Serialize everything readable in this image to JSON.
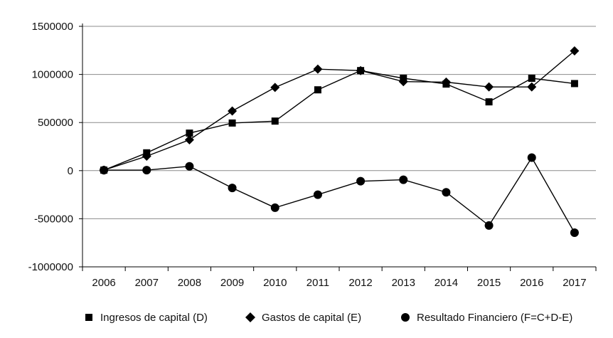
{
  "chart_data": {
    "type": "line",
    "title": "",
    "xlabel": "",
    "ylabel": "",
    "categories": [
      "2006",
      "2007",
      "2008",
      "2009",
      "2010",
      "2011",
      "2012",
      "2013",
      "2014",
      "2015",
      "2016",
      "2017"
    ],
    "ylim": [
      -1000000,
      1500000
    ],
    "yticks": [
      1500000,
      1000000,
      500000,
      0,
      -500000,
      -1000000
    ],
    "ytick_labels": [
      "1500000",
      "1000000",
      "500000",
      "0",
      "-500000",
      "-1000000"
    ],
    "grid": "horizontal",
    "legend_position": "bottom",
    "series": [
      {
        "name": "Ingresos de capital (D)",
        "marker": "square",
        "values": [
          5000,
          185000,
          390000,
          495000,
          515000,
          840000,
          1040000,
          960000,
          900000,
          715000,
          960000,
          905000
        ]
      },
      {
        "name": "Gastos de capital (E)",
        "marker": "diamond",
        "values": [
          5000,
          150000,
          320000,
          620000,
          865000,
          1055000,
          1040000,
          925000,
          920000,
          870000,
          870000,
          1245000
        ]
      },
      {
        "name": "Resultado Financiero (F=C+D-E)",
        "marker": "circle",
        "values": [
          5000,
          5000,
          45000,
          -180000,
          -385000,
          -250000,
          -110000,
          -95000,
          -225000,
          -570000,
          135000,
          -645000
        ]
      }
    ]
  },
  "colors": {
    "line": "#000000",
    "marker": "#000000",
    "grid": "#8c8c8c",
    "axis": "#000000"
  }
}
